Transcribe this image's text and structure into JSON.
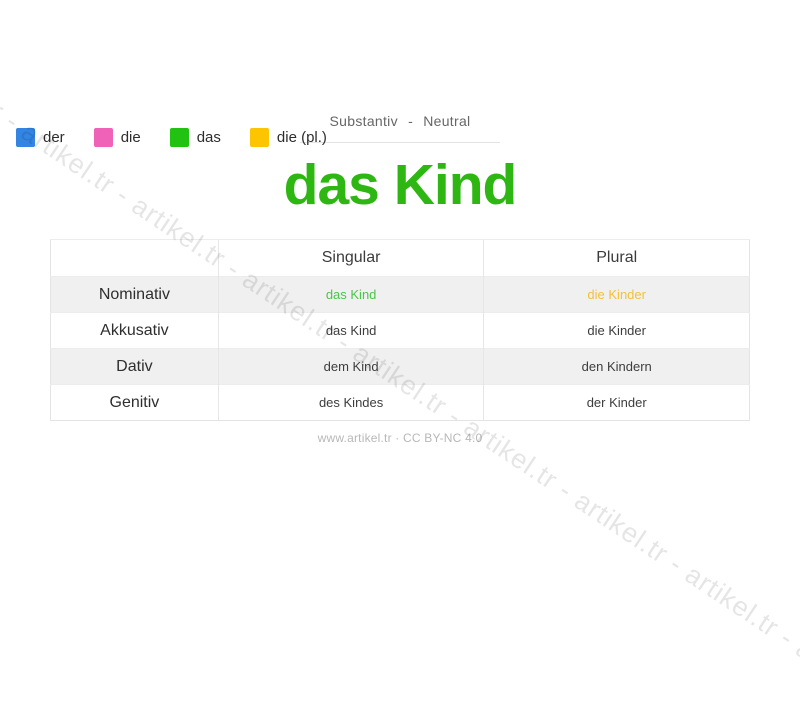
{
  "legend": {
    "items": [
      {
        "label": "der",
        "color": "#3385e4"
      },
      {
        "label": "die",
        "color": "#ef62b8"
      },
      {
        "label": "das",
        "color": "#22c212"
      },
      {
        "label": "die (pl.)",
        "color": "#fdc400"
      }
    ]
  },
  "header": {
    "category": "Substantiv - Neutral",
    "title": "das Kind",
    "title_color": "#2eb712"
  },
  "table": {
    "columns": [
      "",
      "Singular",
      "Plural"
    ],
    "rows": [
      {
        "label": "Nominativ",
        "singular": "das Kind",
        "plural": "die Kinder",
        "singular_color": "#4cc44c",
        "plural_color": "#f2c237",
        "shaded": true
      },
      {
        "label": "Akkusativ",
        "singular": "das Kind",
        "plural": "die Kinder",
        "shaded": false
      },
      {
        "label": "Dativ",
        "singular": "dem Kind",
        "plural": "den Kindern",
        "shaded": true
      },
      {
        "label": "Genitiv",
        "singular": "des Kindes",
        "plural": "der Kinder",
        "shaded": false
      }
    ],
    "shaded_row_color": "#f0f0f0"
  },
  "footer": {
    "text": "www.artikel.tr · CC BY-NC 4.0"
  },
  "watermark": {
    "text": "artikel.tr - artikel.tr - artikel.tr - artikel.tr - artikel.tr - artikel.tr - artikel.tr - artikel.tr - artikel.tr"
  }
}
